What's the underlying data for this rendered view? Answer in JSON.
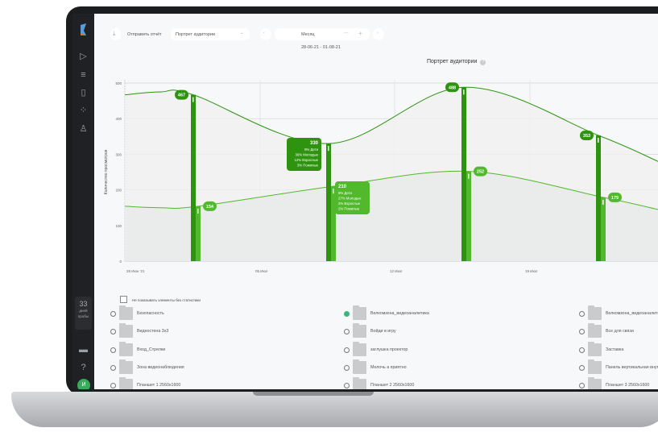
{
  "toolbar": {
    "send_report": "Отправить отчёт",
    "report_select": "Портрет аудитории",
    "period": "Месяц",
    "date_range": "28-06-21 - 01-08-21"
  },
  "sidebar": {
    "trial_days": "33",
    "trial_text_1": "дней",
    "trial_text_2": "пробы",
    "avatar_initial": "И"
  },
  "chart_data": {
    "type": "line",
    "title": "Портрет аудитории",
    "ylabel": "Количество просмотров",
    "ylim": [
      0,
      500
    ],
    "yticks": [
      "500",
      "400",
      "300",
      "200",
      "100",
      "0"
    ],
    "xticks": [
      "28 Июн '21",
      "05 Июл",
      "12 Июл",
      "19 Июл"
    ],
    "grid": true,
    "colors": {
      "upper": "#2e9410",
      "lower": "#52b82c"
    },
    "series": [
      {
        "values": [
          467,
          330,
          488,
          353
        ]
      },
      {
        "values": [
          154,
          210,
          252,
          179
        ]
      }
    ],
    "tooltips": [
      {
        "value": "330",
        "lines": [
          "8% Дети",
          "36% Молодые",
          "12% Взрослые",
          "3% Пожилые"
        ]
      },
      {
        "value": "210",
        "lines": [
          "9% Дети",
          "27% Молодые",
          "2% Взрослые",
          "2% Пожилые"
        ]
      }
    ]
  },
  "filter": {
    "hide_empty": "Не показывать элементы без статистики"
  },
  "items": [
    [
      "Безопасность",
      "Велкомзона_видеоаналитика",
      "Велкомзона_видеоаналитика"
    ],
    [
      "Видеостена 3х3",
      "Войди в игру",
      "Все для связи"
    ],
    [
      "Вход_Стрелки",
      "заглушка проектор",
      "Заставка"
    ],
    [
      "Зона видеонаблюдения",
      "Мелочь а приятно",
      "Панель вертикальная внутр"
    ],
    [
      "Планшет 1 2560х1600",
      "Планшет 2 2560х1600",
      "Планшет 3 2560х1600"
    ]
  ],
  "selected_item": "Велкомзона_видеоаналитика"
}
